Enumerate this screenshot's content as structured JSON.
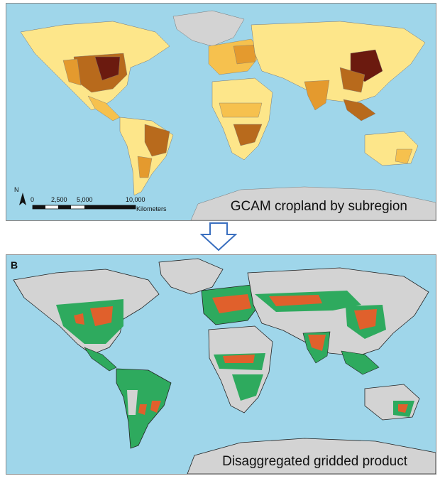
{
  "panel_a": {
    "caption": "GCAM cropland by subregion",
    "north_label": "N",
    "scale": {
      "ticks": [
        "0",
        "2,500",
        "5,000",
        "10,000"
      ],
      "unit": "Kilometers"
    }
  },
  "panel_b": {
    "label": "B",
    "caption": "Disaggregated gridded product"
  },
  "colors": {
    "ocean": "#9fd6ea",
    "land_no_data": "#d3d3d3",
    "crop_low": "#fde68a",
    "crop_mid_low": "#f6c14e",
    "crop_mid": "#e49a2e",
    "crop_high": "#b86a1c",
    "crop_very_high": "#6b1a0f",
    "grid_low": "#2eaa5e",
    "grid_high": "#e0602c",
    "arrow_outline": "#3a6fbf"
  }
}
